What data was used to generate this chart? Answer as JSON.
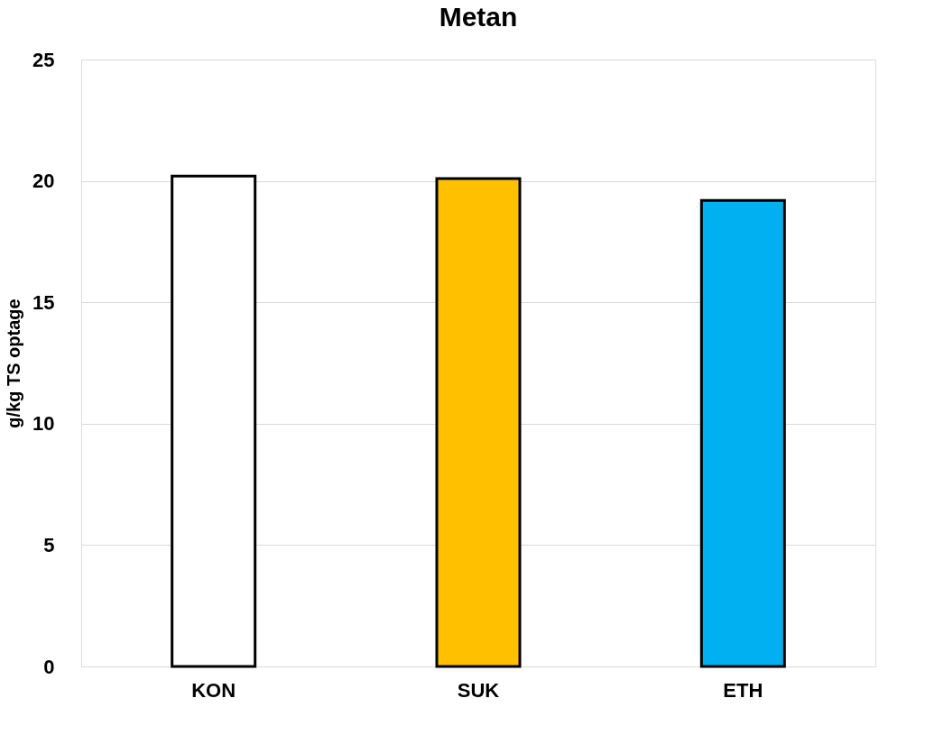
{
  "chart_data": {
    "type": "bar",
    "title": "Metan",
    "ylabel": "g/kg TS optage",
    "categories": [
      "KON",
      "SUK",
      "ETH"
    ],
    "values": [
      20.2,
      20.1,
      19.2
    ],
    "colors": [
      "#ffffff",
      "#ffc000",
      "#00b0f0"
    ],
    "ylim": [
      0,
      25
    ],
    "yticks": [
      0,
      5,
      10,
      15,
      20,
      25
    ],
    "grid": "y",
    "legend": false
  }
}
